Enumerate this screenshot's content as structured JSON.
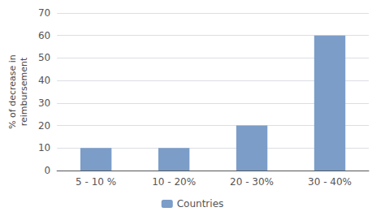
{
  "chart_data": {
    "type": "bar",
    "categories": [
      "5 - 10 %",
      "10 - 20%",
      "20 - 30%",
      "30 - 40%"
    ],
    "series": [
      {
        "name": "Countries",
        "color": "#7b9dc8",
        "values": [
          10,
          10,
          20,
          60
        ]
      }
    ],
    "ylabel": "% of decrease in\nreimbursement",
    "ylim": [
      0,
      70
    ],
    "yticks": [
      0,
      10,
      20,
      30,
      40,
      50,
      60,
      70
    ],
    "grid": true,
    "legend": "bottom"
  }
}
